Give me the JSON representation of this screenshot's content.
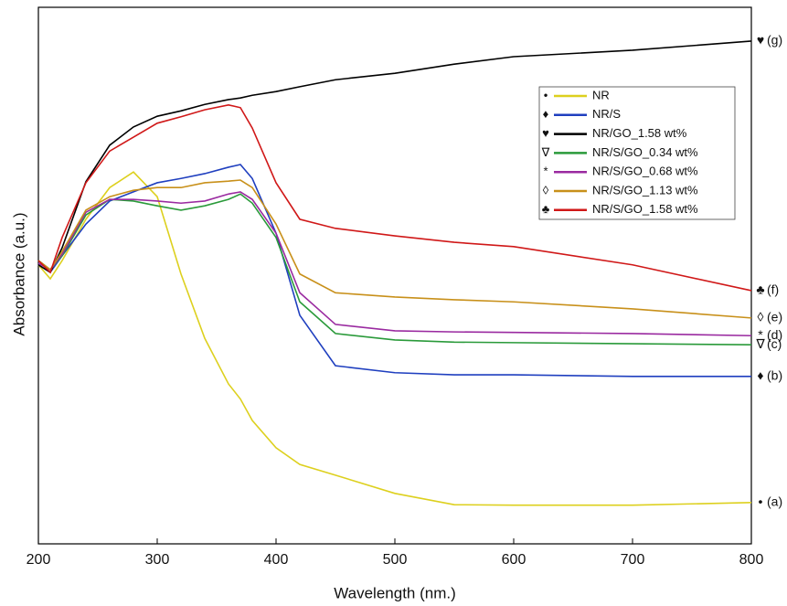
{
  "chart_data": {
    "type": "line",
    "x_label": "Wavelength (nm.)",
    "y_label": "Absorbance (a.u.)",
    "x": [
      200,
      210,
      220,
      240,
      260,
      280,
      300,
      320,
      340,
      360,
      370,
      380,
      400,
      420,
      450,
      500,
      550,
      600,
      700,
      800
    ],
    "xlim": [
      200,
      800
    ],
    "xticks": [
      200,
      300,
      400,
      500,
      600,
      700,
      800
    ],
    "ylim": [
      0,
      100
    ],
    "series": [
      {
        "name": "NR",
        "symbol": "•",
        "end_label": "(a)",
        "color": "#ddd01e",
        "values": [
          52.0,
          49.4,
          52.8,
          60.5,
          66.4,
          69.3,
          64.7,
          50.3,
          38.3,
          29.8,
          27.0,
          23.0,
          17.9,
          14.8,
          12.8,
          9.4,
          7.3,
          7.2,
          7.2,
          7.7
        ]
      },
      {
        "name": "NR/S",
        "symbol": "♦",
        "end_label": "(b)",
        "color": "#1f3fbf",
        "values": [
          52.0,
          50.6,
          53.7,
          59.6,
          63.9,
          65.6,
          67.3,
          68.1,
          69.0,
          70.2,
          70.7,
          68.1,
          57.9,
          42.6,
          33.2,
          31.9,
          31.5,
          31.5,
          31.2,
          31.2
        ]
      },
      {
        "name": "NR/GO_1.58 wt%",
        "symbol": "♥",
        "end_label": "(g)",
        "color": "#000000",
        "values": [
          52.0,
          50.6,
          55.2,
          67.5,
          74.3,
          77.7,
          79.7,
          80.7,
          81.9,
          82.8,
          83.1,
          83.6,
          84.3,
          85.2,
          86.5,
          87.7,
          89.4,
          90.8,
          92.0,
          93.7
        ]
      },
      {
        "name": "NR/S/GO_0.34 wt%",
        "symbol": "∇",
        "end_label": "(c)",
        "color": "#2a9a3a",
        "values": [
          52.8,
          51.1,
          53.7,
          61.3,
          64.2,
          63.9,
          63.0,
          62.2,
          63.0,
          64.2,
          65.2,
          63.5,
          57.1,
          45.1,
          39.2,
          38.0,
          37.6,
          37.5,
          37.3,
          37.1
        ]
      },
      {
        "name": "NR/S/GO_0.68 wt%",
        "symbol": "*",
        "end_label": "(d)",
        "color": "#9a2aa0",
        "values": [
          52.3,
          51.1,
          54.0,
          61.8,
          64.2,
          64.2,
          63.9,
          63.5,
          63.9,
          65.2,
          65.6,
          64.2,
          57.9,
          46.8,
          40.9,
          39.7,
          39.5,
          39.4,
          39.2,
          38.8
        ]
      },
      {
        "name": "NR/S/GO_1.13 wt%",
        "symbol": "◊",
        "end_label": "(e)",
        "color": "#c8901a",
        "values": [
          52.8,
          51.1,
          54.5,
          62.2,
          64.7,
          65.9,
          66.4,
          66.4,
          67.3,
          67.6,
          67.8,
          66.4,
          59.6,
          50.3,
          46.8,
          46.0,
          45.5,
          45.1,
          43.8,
          42.1
        ]
      },
      {
        "name": "NR/S/GO_1.58 wt%",
        "symbol": "♣",
        "end_label": "(f)",
        "color": "#d01818",
        "values": [
          52.8,
          50.6,
          57.1,
          67.3,
          73.2,
          75.8,
          78.4,
          79.6,
          80.9,
          81.8,
          81.3,
          77.5,
          67.3,
          60.5,
          58.8,
          57.4,
          56.2,
          55.4,
          52.0,
          47.2
        ]
      }
    ]
  }
}
